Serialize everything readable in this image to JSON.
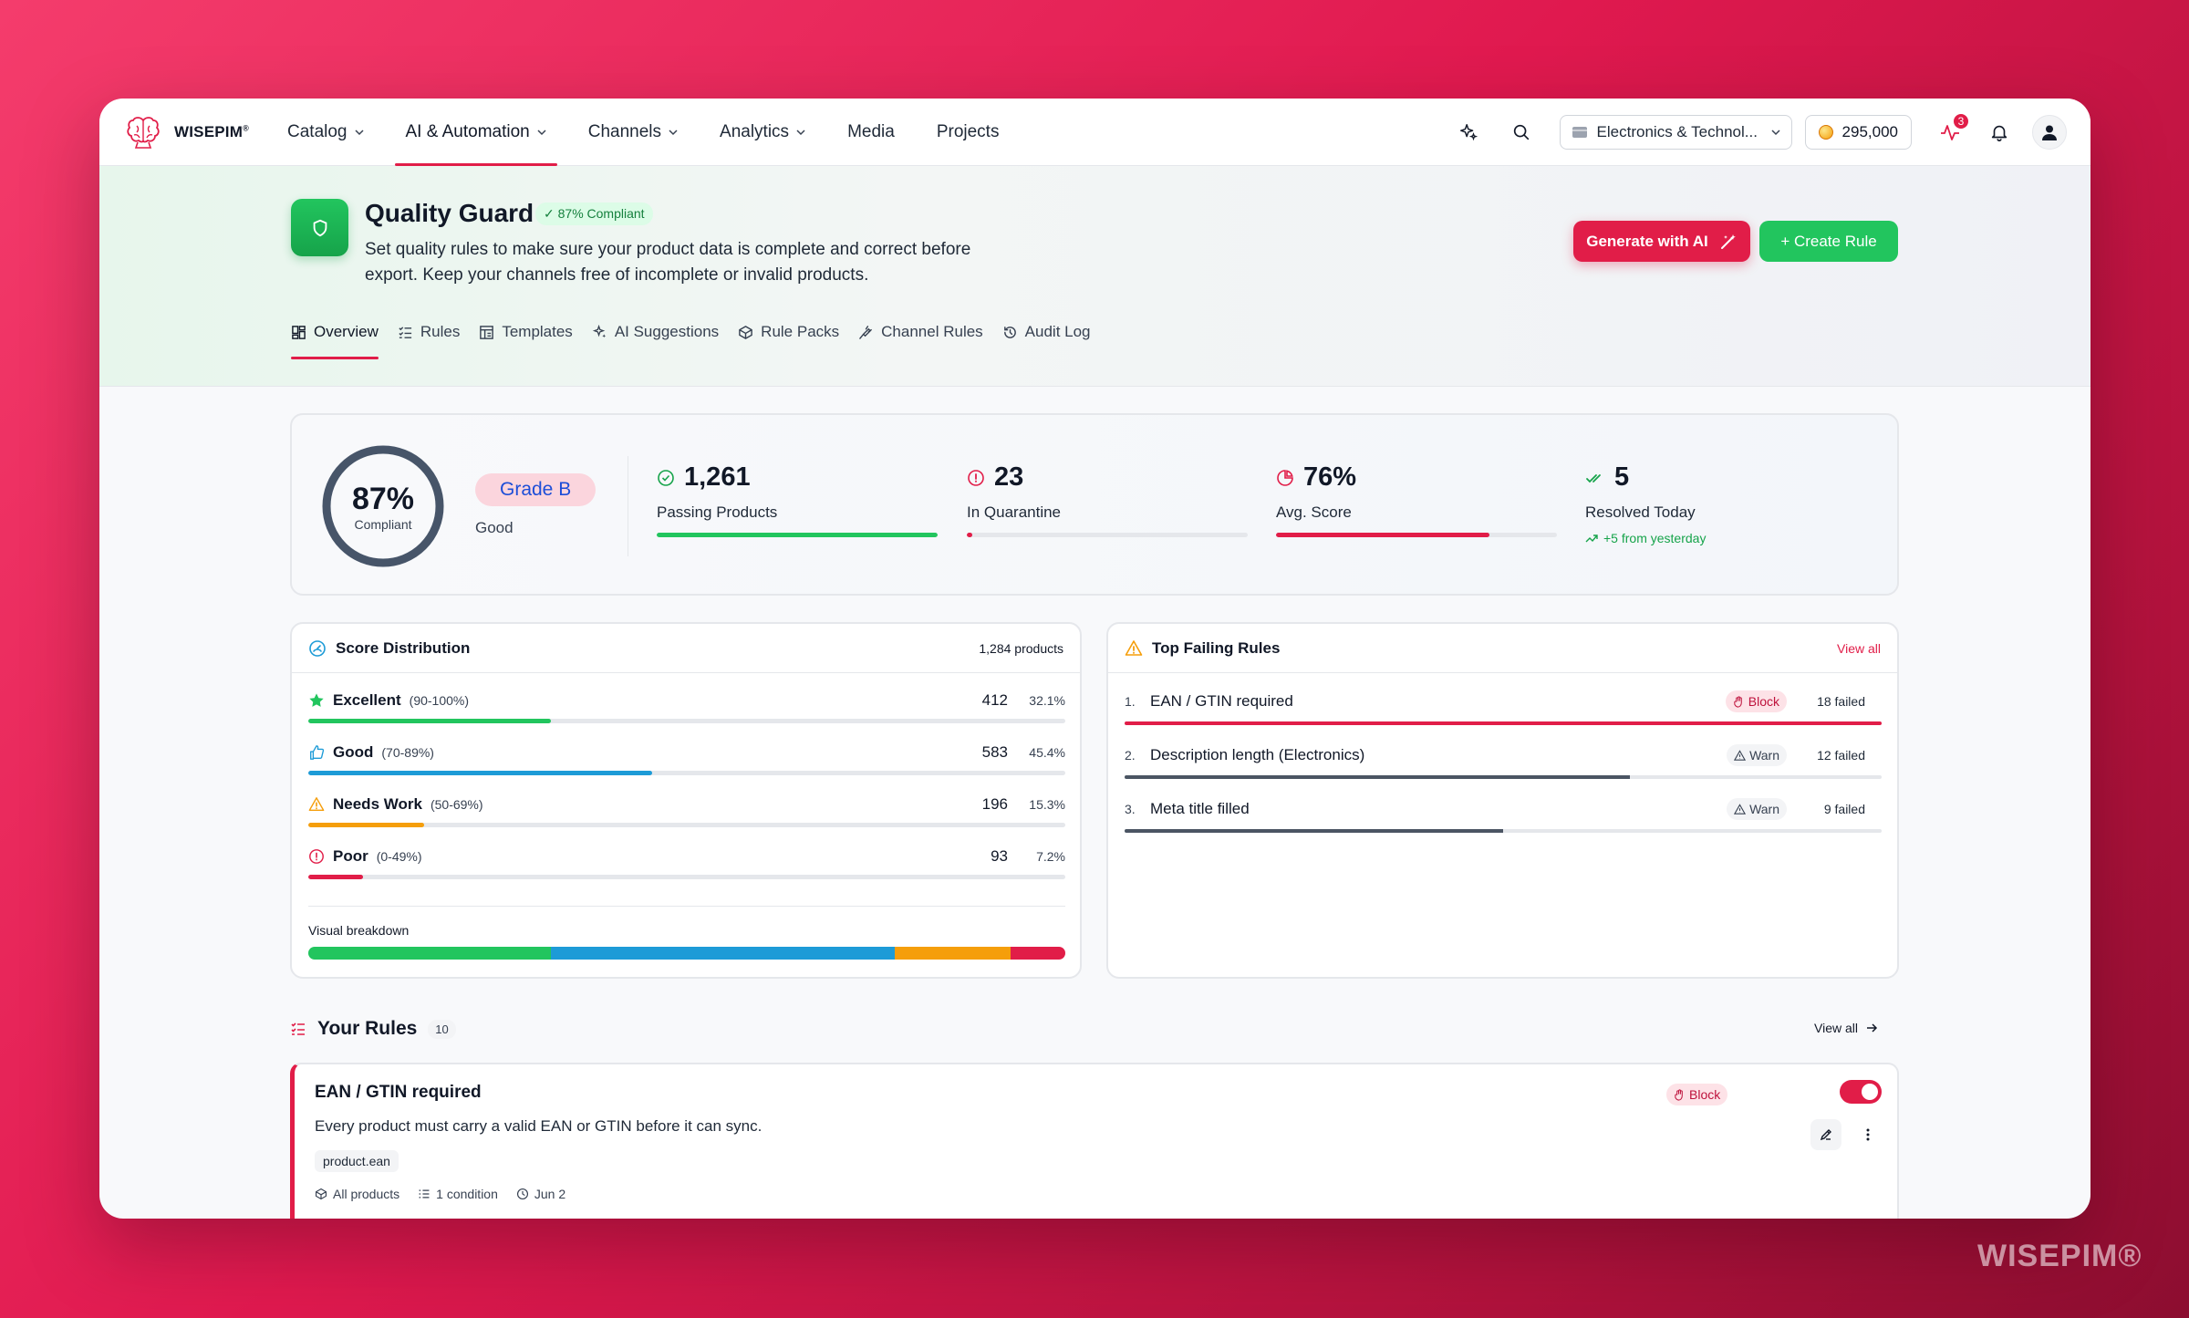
{
  "app": {
    "brand": "WISEPIM",
    "brand_mark": "®"
  },
  "nav": {
    "items": [
      {
        "label": "Catalog",
        "dropdown": true,
        "active": false
      },
      {
        "label": "AI & Automation",
        "dropdown": true,
        "active": true
      },
      {
        "label": "Channels",
        "dropdown": true,
        "active": false
      },
      {
        "label": "Analytics",
        "dropdown": true,
        "active": false
      },
      {
        "label": "Media",
        "dropdown": false,
        "active": false
      },
      {
        "label": "Projects",
        "dropdown": false,
        "active": false
      }
    ],
    "store": "Electronics & Technol...",
    "credits": "295,000",
    "activity_badge": "3"
  },
  "header": {
    "title": "Quality Guard",
    "badge": "✓ 87% Compliant",
    "description": "Set quality rules to make sure your product data is complete and correct before export. Keep your channels free of incomplete or invalid products.",
    "generate_label": "Generate with AI",
    "create_label": "+ Create Rule"
  },
  "tabs": [
    "Overview",
    "Rules",
    "Templates",
    "AI Suggestions",
    "Rule Packs",
    "Channel Rules",
    "Audit Log"
  ],
  "summary": {
    "compliance_pct": "87%",
    "compliance_value": 0.87,
    "compliance_label": "Compliant",
    "grade": "Grade B",
    "grade_sub": "Good",
    "stats": [
      {
        "value": "1,261",
        "label": "Passing Products",
        "bar": 1.0,
        "color": "#22c55e",
        "icon": "check-circle-icon"
      },
      {
        "value": "23",
        "label": "In Quarantine",
        "bar": 0.02,
        "color": "#e11d48",
        "icon": "alert-circle-icon"
      },
      {
        "value": "76%",
        "label": "Avg. Score",
        "bar": 0.76,
        "color": "#e11d48",
        "icon": "pie-chart-icon"
      },
      {
        "value": "5",
        "label": "Resolved Today",
        "note": "+5 from yesterday",
        "color": "#22c55e",
        "icon": "double-check-icon"
      }
    ]
  },
  "distribution": {
    "title": "Score Distribution",
    "total": "1,284 products",
    "rows": [
      {
        "name": "Excellent",
        "range": "(90-100%)",
        "count": "412",
        "pct": "32.1%",
        "value": 0.321,
        "color": "#22c55e",
        "icon": "star-icon"
      },
      {
        "name": "Good",
        "range": "(70-89%)",
        "count": "583",
        "pct": "45.4%",
        "value": 0.454,
        "color": "#1d9bd7",
        "icon": "thumbs-up-icon"
      },
      {
        "name": "Needs Work",
        "range": "(50-69%)",
        "count": "196",
        "pct": "15.3%",
        "value": 0.153,
        "color": "#f59e0b",
        "icon": "warning-icon"
      },
      {
        "name": "Poor",
        "range": "(0-49%)",
        "count": "93",
        "pct": "7.2%",
        "value": 0.072,
        "color": "#e11d48",
        "icon": "alert-circle-icon"
      }
    ],
    "breakdown_label": "Visual breakdown"
  },
  "failing": {
    "title": "Top Failing Rules",
    "view_all": "View all",
    "rows": [
      {
        "no": "1.",
        "name": "EAN / GTIN required",
        "tag": "Block",
        "count": "18 failed",
        "value": 1.0,
        "color": "#e11d48"
      },
      {
        "no": "2.",
        "name": "Description length (Electronics)",
        "tag": "Warn",
        "count": "12 failed",
        "value": 0.667,
        "color": "#4b5563"
      },
      {
        "no": "3.",
        "name": "Meta title filled",
        "tag": "Warn",
        "count": "9 failed",
        "value": 0.5,
        "color": "#4b5563"
      }
    ]
  },
  "rules": {
    "title": "Your Rules",
    "count": "10",
    "view_all": "View all",
    "items": [
      {
        "title": "EAN / GTIN required",
        "description": "Every product must carry a valid EAN or GTIN before it can sync.",
        "field": "product.ean",
        "scope": "All products",
        "conditions": "1 condition",
        "date": "Jun 2",
        "tag": "Block",
        "enabled": true
      }
    ]
  },
  "watermark": "WISEPIM®",
  "colors": {
    "accent": "#e11d48",
    "success": "#22c55e",
    "info": "#1d9bd7",
    "warning": "#f59e0b"
  }
}
